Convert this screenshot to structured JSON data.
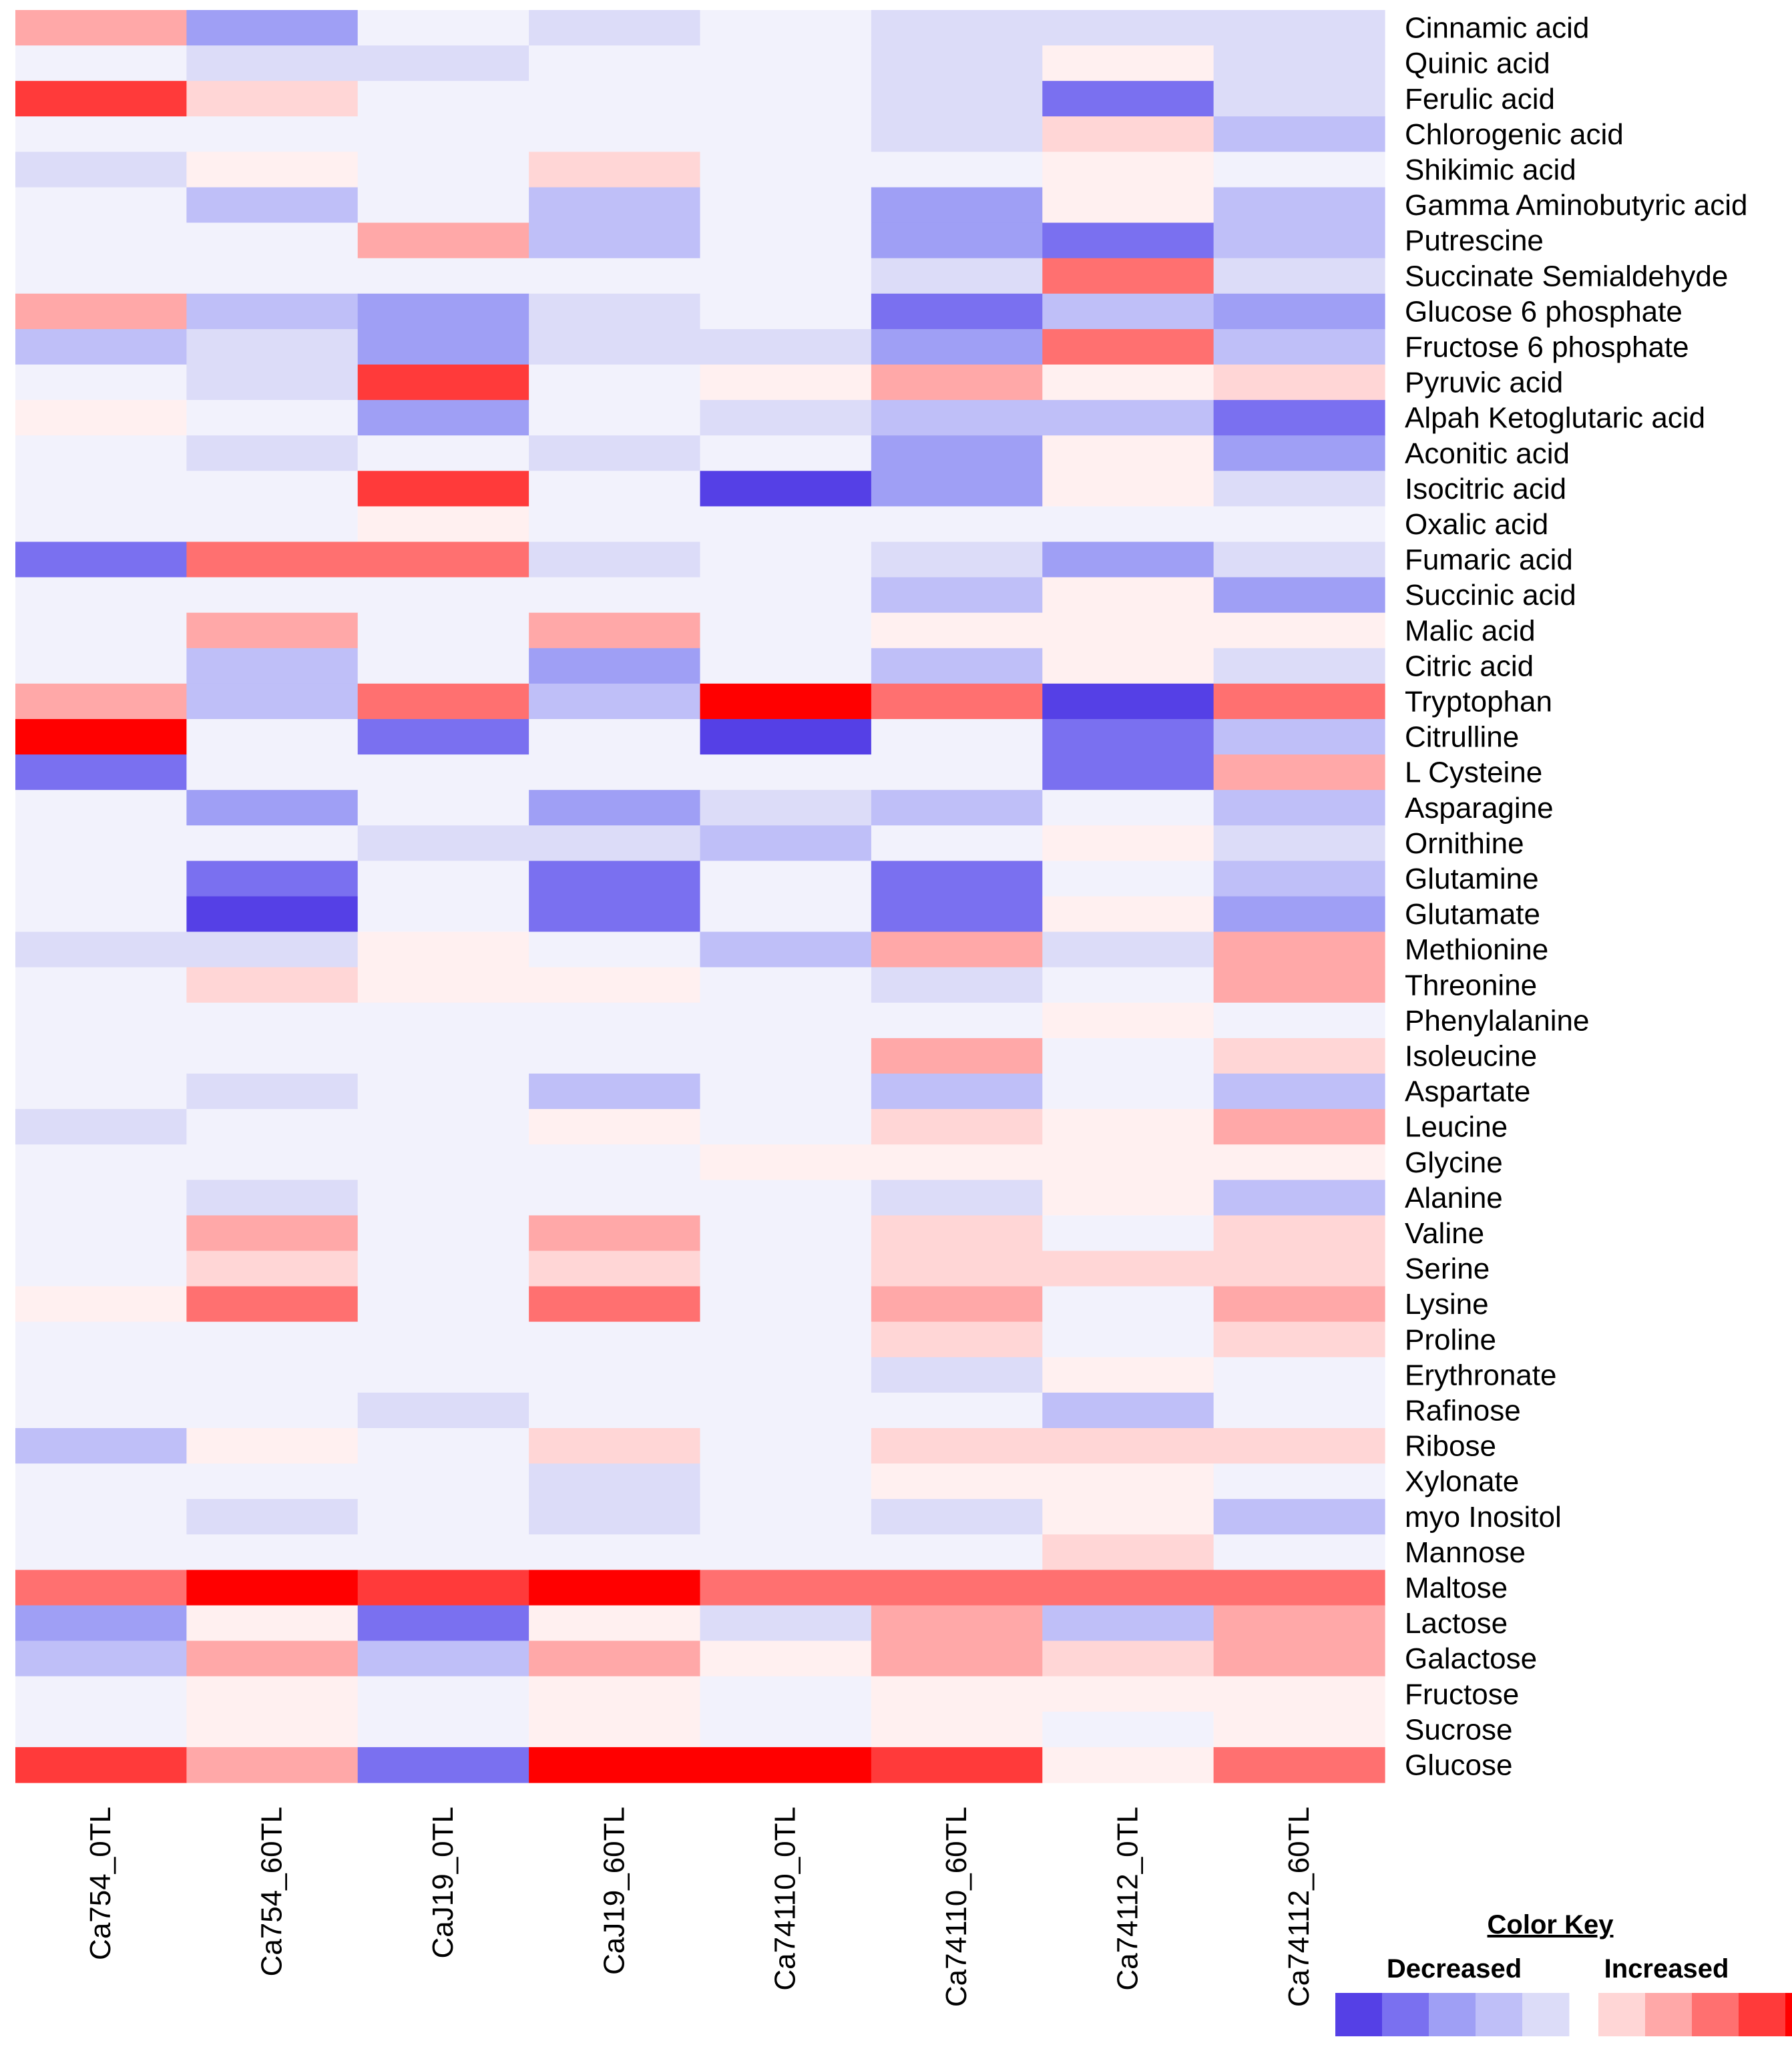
{
  "chart_data": {
    "type": "heatmap",
    "columns": [
      "Ca754_0TL",
      "Ca754_60TL",
      "CaJ19_0TL",
      "CaJ19_60TL",
      "Ca74110_0TL",
      "Ca74110_60TL",
      "Ca74112_0TL",
      "Ca74112_60TL"
    ],
    "rows": [
      "Cinnamic acid",
      "Quinic acid",
      "Ferulic acid",
      "Chlorogenic acid",
      "Shikimic acid",
      "Gamma Aminobutyric acid",
      "Putrescine",
      "Succinate Semialdehyde",
      "Glucose 6 phosphate",
      "Fructose 6 phosphate",
      "Pyruvic acid",
      "Alpah Ketoglutaric acid",
      "Aconitic acid",
      "Isocitric acid",
      "Oxalic acid",
      "Fumaric acid",
      "Succinic acid",
      "Malic acid",
      "Citric acid",
      "Tryptophan",
      "Citrulline",
      "L Cysteine",
      "Asparagine",
      "Ornithine",
      "Glutamine",
      "Glutamate",
      "Methionine",
      "Threonine",
      "Phenylalanine",
      "Isoleucine",
      "Aspartate",
      "Leucine",
      "Glycine",
      "Alanine",
      "Valine",
      "Serine",
      "Lysine",
      "Proline",
      "Erythronate",
      "Rafinose",
      "Ribose",
      "Xylonate",
      "myo Inositol",
      "Mannose",
      "Maltose",
      "Lactose",
      "Galactose",
      "Fructose",
      "Sucrose",
      "Glucose"
    ],
    "values_note": "signed intensity: negative = decreased (blue), positive = increased (red), scale -6..6",
    "values": [
      [
        3,
        -4,
        -1,
        -2,
        -1,
        -2,
        -2,
        -2
      ],
      [
        -1,
        -2,
        -2,
        -1,
        -1,
        -2,
        1,
        -2
      ],
      [
        5,
        2,
        -1,
        -1,
        -1,
        -2,
        -5,
        -2
      ],
      [
        -1,
        -1,
        -1,
        -1,
        -1,
        -2,
        2,
        -3
      ],
      [
        -2,
        1,
        -1,
        2,
        -1,
        -1,
        1,
        -1
      ],
      [
        -1,
        -3,
        -1,
        -3,
        -1,
        -4,
        1,
        -3
      ],
      [
        -1,
        -1,
        3,
        -3,
        -1,
        -4,
        -5,
        -3
      ],
      [
        -1,
        -1,
        -1,
        -1,
        -1,
        -2,
        4,
        -2
      ],
      [
        3,
        -3,
        -4,
        -2,
        -1,
        -5,
        -3,
        -4
      ],
      [
        -3,
        -2,
        -4,
        -2,
        -2,
        -4,
        4,
        -3
      ],
      [
        -1,
        -2,
        5,
        -1,
        1,
        3,
        1,
        2
      ],
      [
        1,
        -1,
        -4,
        -1,
        -2,
        -3,
        -3,
        -5
      ],
      [
        -1,
        -2,
        -1,
        -2,
        -1,
        -4,
        1,
        -4
      ],
      [
        -1,
        -1,
        5,
        -1,
        -6,
        -4,
        1,
        -2
      ],
      [
        -1,
        -1,
        1,
        -1,
        -1,
        -1,
        -1,
        -1
      ],
      [
        -5,
        4,
        4,
        -2,
        -1,
        -2,
        -4,
        -2
      ],
      [
        -1,
        -1,
        -1,
        -1,
        -1,
        -3,
        1,
        -4
      ],
      [
        -1,
        3,
        -1,
        3,
        -1,
        1,
        1,
        1
      ],
      [
        -1,
        -3,
        -1,
        -4,
        -1,
        -3,
        1,
        -2
      ],
      [
        3,
        -3,
        4,
        -3,
        6,
        4,
        -6,
        4
      ],
      [
        6,
        -1,
        -5,
        -1,
        -6,
        -1,
        -5,
        -3
      ],
      [
        -5,
        -1,
        -1,
        -1,
        -1,
        -1,
        -5,
        3
      ],
      [
        -1,
        -4,
        -1,
        -4,
        -2,
        -3,
        -1,
        -3
      ],
      [
        -1,
        -1,
        -2,
        -2,
        -3,
        -1,
        1,
        -2
      ],
      [
        -1,
        -5,
        -1,
        -5,
        -1,
        -5,
        -1,
        -3
      ],
      [
        -1,
        -6,
        -1,
        -5,
        -1,
        -5,
        1,
        -4
      ],
      [
        -2,
        -2,
        1,
        -1,
        -3,
        3,
        -2,
        3
      ],
      [
        -1,
        2,
        1,
        1,
        -1,
        -2,
        -1,
        3
      ],
      [
        -1,
        -1,
        -1,
        -1,
        -1,
        -1,
        1,
        -1
      ],
      [
        -1,
        -1,
        -1,
        -1,
        -1,
        3,
        -1,
        2
      ],
      [
        -1,
        -2,
        -1,
        -3,
        -1,
        -3,
        -1,
        -3
      ],
      [
        -2,
        -1,
        -1,
        1,
        -1,
        2,
        1,
        3
      ],
      [
        -1,
        -1,
        -1,
        -1,
        1,
        1,
        1,
        1
      ],
      [
        -1,
        -2,
        -1,
        -1,
        -1,
        -2,
        1,
        -3
      ],
      [
        -1,
        3,
        -1,
        3,
        -1,
        2,
        -1,
        2
      ],
      [
        -1,
        2,
        -1,
        2,
        -1,
        2,
        2,
        2
      ],
      [
        1,
        4,
        -1,
        4,
        -1,
        3,
        -1,
        3
      ],
      [
        -1,
        -1,
        -1,
        -1,
        -1,
        2,
        -1,
        2
      ],
      [
        -1,
        -1,
        -1,
        -1,
        -1,
        -2,
        1,
        -1
      ],
      [
        -1,
        -1,
        -2,
        -1,
        -1,
        -1,
        -3,
        -1
      ],
      [
        -3,
        1,
        -1,
        2,
        -1,
        2,
        2,
        2
      ],
      [
        -1,
        -1,
        -1,
        -2,
        -1,
        1,
        1,
        -1
      ],
      [
        -1,
        -2,
        -1,
        -2,
        -1,
        -2,
        1,
        -3
      ],
      [
        -1,
        -1,
        -1,
        -1,
        -1,
        -1,
        2,
        -1
      ],
      [
        4,
        6,
        5,
        6,
        4,
        4,
        4,
        4
      ],
      [
        -4,
        1,
        -5,
        1,
        -2,
        3,
        -3,
        3
      ],
      [
        -3,
        3,
        -3,
        3,
        1,
        3,
        2,
        3
      ],
      [
        -1,
        1,
        -1,
        1,
        -1,
        1,
        1,
        1
      ],
      [
        -1,
        1,
        -1,
        1,
        -1,
        1,
        -1,
        1
      ],
      [
        5,
        3,
        -5,
        6,
        6,
        5,
        1,
        4
      ]
    ],
    "legend": {
      "title": "Color Key",
      "decreased_label": "Decreased",
      "increased_label": "Increased",
      "decreased_colors": [
        "#5540e6",
        "#7a70f0",
        "#9f9ff5",
        "#bfbff8",
        "#dcdcf8"
      ],
      "increased_colors": [
        "#ffd6d6",
        "#ffa8a8",
        "#ff7070",
        "#ff3a3a",
        "#ff0000"
      ]
    },
    "neutral_color": "#f2f2fc",
    "light_pos_color": "#fff0f0",
    "scale_range": [
      -6,
      6
    ]
  }
}
